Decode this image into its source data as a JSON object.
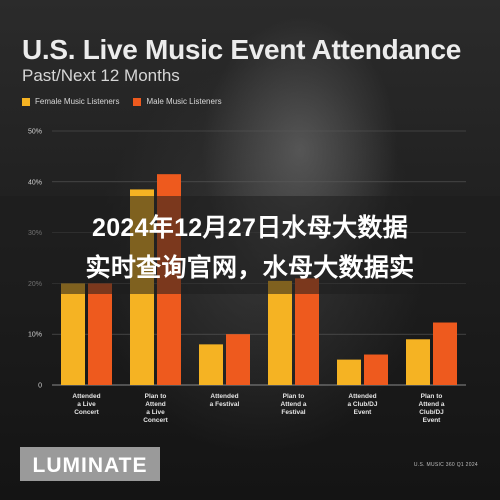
{
  "header": {
    "title": "U.S. Live Music Event Attendance",
    "subtitle": "Past/Next 12 Months"
  },
  "legend": [
    {
      "label": "Female Music Listeners",
      "color": "#F5B323"
    },
    {
      "label": "Male Music Listeners",
      "color": "#EE5A1E"
    }
  ],
  "banner": {
    "line1": "2024年12月27日水母大数据",
    "line2": "实时查询官网，水母大数据实"
  },
  "brand": {
    "logo_text": "LUMINATE"
  },
  "source": "U.S. MUSIC 360 Q1 2024",
  "chart_data": {
    "type": "bar",
    "title": "U.S. Live Music Event Attendance",
    "subtitle": "Past/Next 12 Months",
    "categories": [
      [
        "Attended",
        "a Live",
        "Concert"
      ],
      [
        "Plan to",
        "Attend",
        "a Live",
        "Concert"
      ],
      [
        "Attended",
        "a Festival"
      ],
      [
        "Plan to",
        "Attend a",
        "Festival"
      ],
      [
        "Attended",
        "a Club/DJ",
        "Event"
      ],
      [
        "Plan to",
        "Attend a",
        "Club/DJ",
        "Event"
      ]
    ],
    "series": [
      {
        "name": "Female Music Listeners",
        "color": "#F5B323",
        "values": [
          20,
          38.5,
          8,
          20.5,
          5,
          9
        ]
      },
      {
        "name": "Male Music Listeners",
        "color": "#EE5A1E",
        "values": [
          20,
          41.5,
          10,
          21,
          6,
          12.3
        ]
      }
    ],
    "y_ticks": [
      "0",
      "10%",
      "20%",
      "30%",
      "40%",
      "50%"
    ],
    "ylim": [
      0,
      50
    ],
    "grid": true,
    "legend_position": "top-left"
  }
}
